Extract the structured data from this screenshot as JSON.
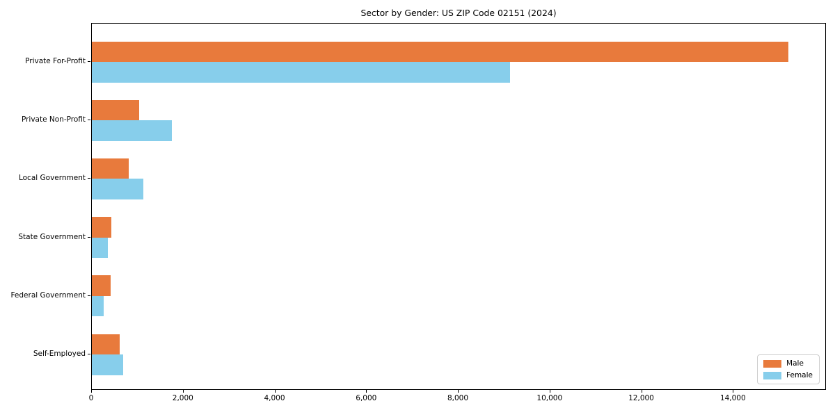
{
  "chart_data": {
    "type": "bar",
    "orientation": "horizontal",
    "title": "Sector by Gender: US ZIP Code 02151 (2024)",
    "categories": [
      "Private For-Profit",
      "Private Non-Profit",
      "Local Government",
      "State Government",
      "Federal Government",
      "Self-Employed"
    ],
    "series": [
      {
        "name": "Male",
        "color": "#E87A3C",
        "values": [
          15200,
          1030,
          800,
          425,
          410,
          605
        ]
      },
      {
        "name": "Female",
        "color": "#87CEEB",
        "values": [
          9130,
          1740,
          1120,
          350,
          260,
          680
        ]
      }
    ],
    "xlabel": "",
    "ylabel": "",
    "xlim": [
      0,
      16000
    ],
    "xticks": [
      0,
      2000,
      4000,
      6000,
      8000,
      10000,
      12000,
      14000
    ],
    "xtick_labels": [
      "0",
      "2,000",
      "4,000",
      "6,000",
      "8,000",
      "10,000",
      "12,000",
      "14,000"
    ],
    "grid": false,
    "legend": {
      "position": "lower right"
    },
    "spine_color": "#000000",
    "background_color": "#ffffff"
  }
}
